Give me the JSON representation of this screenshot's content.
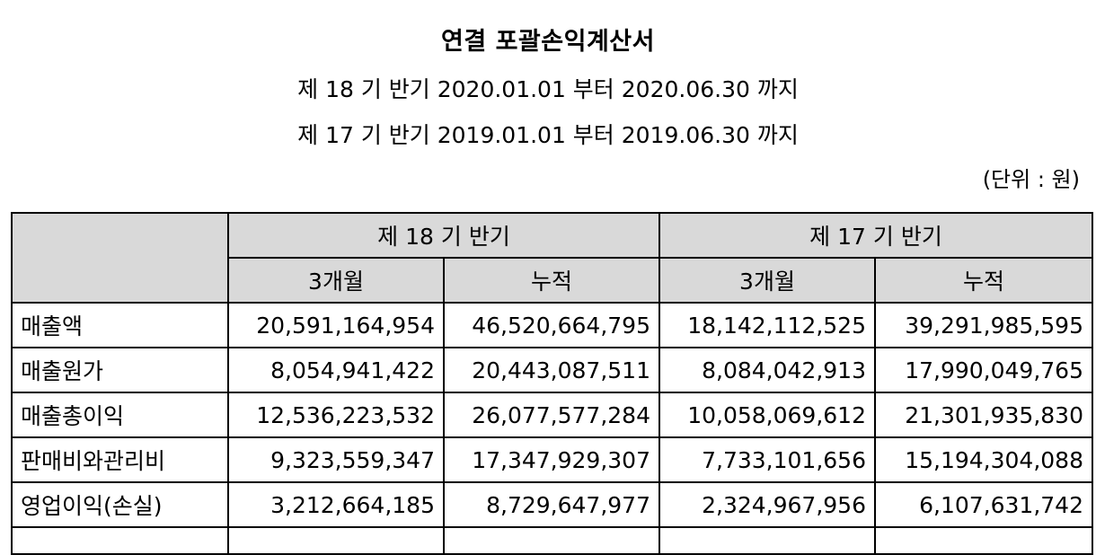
{
  "header": {
    "title": "연결 포괄손익계산서",
    "period_current": "제 18 기 반기 2020.01.01 부터 2020.06.30 까지",
    "period_prior": "제 17 기 반기 2019.01.01 부터 2019.06.30 까지",
    "unit": "(단위 : 원)"
  },
  "table": {
    "group_headers": [
      "제 18 기 반기",
      "제 17 기 반기"
    ],
    "sub_headers": [
      "3개월",
      "누적",
      "3개월",
      "누적"
    ],
    "rows": [
      {
        "label": "매출액",
        "values": [
          "20,591,164,954",
          "46,520,664,795",
          "18,142,112,525",
          "39,291,985,595"
        ]
      },
      {
        "label": "매출원가",
        "values": [
          "8,054,941,422",
          "20,443,087,511",
          "8,084,042,913",
          "17,990,049,765"
        ]
      },
      {
        "label": "매출총이익",
        "values": [
          "12,536,223,532",
          "26,077,577,284",
          "10,058,069,612",
          "21,301,935,830"
        ]
      },
      {
        "label": "판매비와관리비",
        "values": [
          "9,323,559,347",
          "17,347,929,307",
          "7,733,101,656",
          "15,194,304,088"
        ]
      },
      {
        "label": "영업이익(손실)",
        "values": [
          "3,212,664,185",
          "8,729,647,977",
          "2,324,967,956",
          "6,107,631,742"
        ]
      }
    ]
  }
}
